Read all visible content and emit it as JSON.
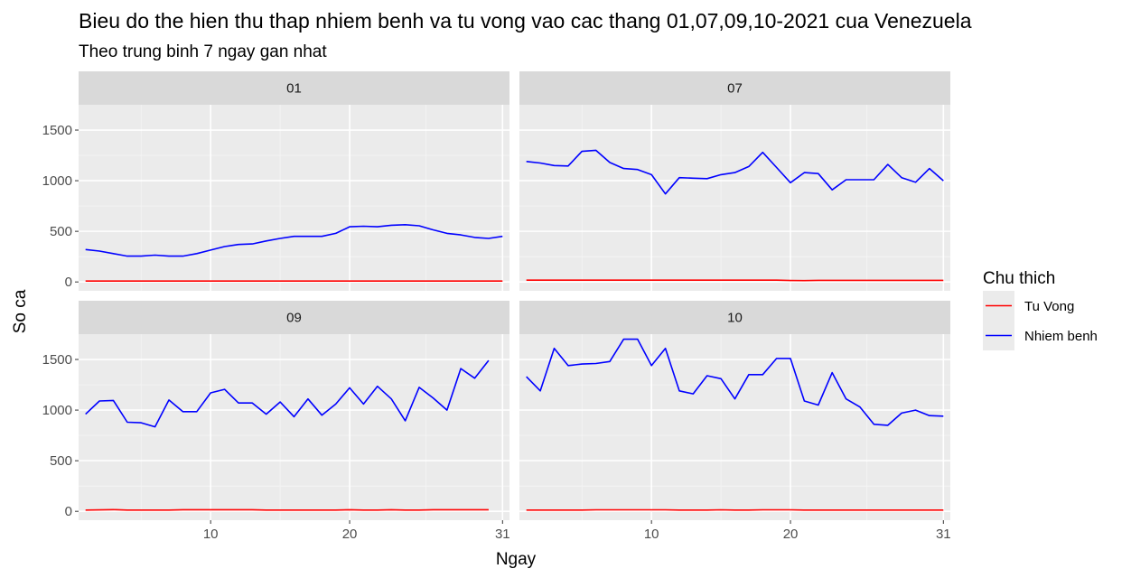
{
  "chart_data": {
    "type": "line",
    "title": "Bieu do the hien thu thap nhiem benh va tu vong vao cac thang 01,07,09,10-2021 cua Venezuela",
    "subtitle": "Theo trung binh 7 ngay gan nhat",
    "xlabel": "Ngay",
    "ylabel": "So ca",
    "facet_layout": "2x2",
    "xlim": [
      1,
      31
    ],
    "ylim": [
      0,
      1750
    ],
    "x_ticks": [
      10,
      20,
      31
    ],
    "x_tick_labels": [
      "10",
      "20",
      "31"
    ],
    "y_ticks": [
      0,
      500,
      1000,
      1500
    ],
    "y_tick_labels": [
      "0",
      "500",
      "1000",
      "1500"
    ],
    "grid": true,
    "legend": {
      "title": "Chu thich",
      "position": "right",
      "entries": [
        {
          "label": "Tu Vong",
          "color": "#ff0000"
        },
        {
          "label": "Nhiem benh",
          "color": "#0000ff"
        }
      ]
    },
    "panels": [
      {
        "label": "01",
        "x": [
          1,
          2,
          3,
          4,
          5,
          6,
          7,
          8,
          9,
          10,
          11,
          12,
          13,
          14,
          15,
          16,
          17,
          18,
          19,
          20,
          21,
          22,
          23,
          24,
          25,
          26,
          27,
          28,
          29,
          30,
          31
        ],
        "series": [
          {
            "name": "Nhiem benh",
            "values": [
              320,
              305,
              280,
              255,
              255,
              265,
              255,
              255,
              280,
              315,
              350,
              370,
              375,
              405,
              430,
              450,
              450,
              450,
              480,
              545,
              550,
              545,
              560,
              565,
              555,
              515,
              480,
              465,
              440,
              430,
              450
            ]
          },
          {
            "name": "Tu Vong",
            "values": [
              9,
              9,
              9,
              9,
              9,
              9,
              9,
              9,
              9,
              9,
              9,
              9,
              9,
              9,
              9,
              9,
              9,
              9,
              9,
              9,
              9,
              9,
              9,
              9,
              9,
              9,
              9,
              9,
              9,
              9,
              9
            ]
          }
        ]
      },
      {
        "label": "07",
        "x": [
          1,
          2,
          3,
          4,
          5,
          6,
          7,
          8,
          9,
          10,
          11,
          12,
          13,
          14,
          15,
          16,
          17,
          18,
          19,
          20,
          21,
          22,
          23,
          24,
          25,
          26,
          27,
          28,
          29,
          30,
          31
        ],
        "series": [
          {
            "name": "Nhiem benh",
            "values": [
              1190,
              1175,
              1150,
              1145,
              1290,
              1300,
              1180,
              1120,
              1110,
              1060,
              870,
              1030,
              1025,
              1020,
              1060,
              1080,
              1140,
              1280,
              1130,
              980,
              1080,
              1070,
              910,
              1010,
              1010,
              1010,
              1160,
              1030,
              985,
              1120,
              1000
            ]
          },
          {
            "name": "Tu Vong",
            "values": [
              18,
              18,
              18,
              18,
              18,
              18,
              18,
              18,
              18,
              18,
              18,
              18,
              18,
              18,
              18,
              18,
              18,
              18,
              18,
              14,
              13,
              16,
              16,
              16,
              16,
              16,
              16,
              16,
              16,
              16,
              16
            ]
          }
        ]
      },
      {
        "label": "09",
        "x": [
          1,
          2,
          3,
          4,
          5,
          6,
          7,
          8,
          9,
          10,
          11,
          12,
          13,
          14,
          15,
          16,
          17,
          18,
          19,
          20,
          21,
          22,
          23,
          24,
          25,
          26,
          27,
          28,
          29,
          30
        ],
        "series": [
          {
            "name": "Nhiem benh",
            "values": [
              960,
              1090,
              1095,
              880,
              875,
              835,
              1100,
              985,
              985,
              1170,
              1205,
              1070,
              1070,
              960,
              1080,
              935,
              1110,
              950,
              1060,
              1220,
              1060,
              1235,
              1110,
              895,
              1225,
              1120,
              1000,
              1410,
              1315,
              1490
            ]
          },
          {
            "name": "Tu Vong",
            "values": [
              12,
              14,
              17,
              12,
              12,
              12,
              12,
              16,
              16,
              16,
              16,
              16,
              16,
              12,
              12,
              12,
              12,
              12,
              12,
              16,
              12,
              12,
              16,
              12,
              12,
              16,
              16,
              16,
              16,
              16
            ]
          }
        ]
      },
      {
        "label": "10",
        "x": [
          1,
          2,
          3,
          4,
          5,
          6,
          7,
          8,
          9,
          10,
          11,
          12,
          13,
          14,
          15,
          16,
          17,
          18,
          19,
          20,
          21,
          22,
          23,
          24,
          25,
          26,
          27,
          28,
          29,
          30,
          31
        ],
        "series": [
          {
            "name": "Nhiem benh",
            "values": [
              1330,
              1190,
              1610,
              1440,
              1455,
              1460,
              1480,
              1700,
              1700,
              1440,
              1610,
              1190,
              1160,
              1340,
              1310,
              1110,
              1350,
              1350,
              1510,
              1510,
              1090,
              1050,
              1370,
              1110,
              1030,
              860,
              850,
              970,
              1000,
              945,
              940
            ]
          },
          {
            "name": "Tu Vong",
            "values": [
              12,
              12,
              12,
              12,
              12,
              15,
              15,
              15,
              15,
              15,
              15,
              12,
              12,
              12,
              15,
              12,
              12,
              15,
              15,
              15,
              12,
              12,
              12,
              12,
              12,
              12,
              12,
              12,
              12,
              12,
              12
            ]
          }
        ]
      }
    ]
  }
}
